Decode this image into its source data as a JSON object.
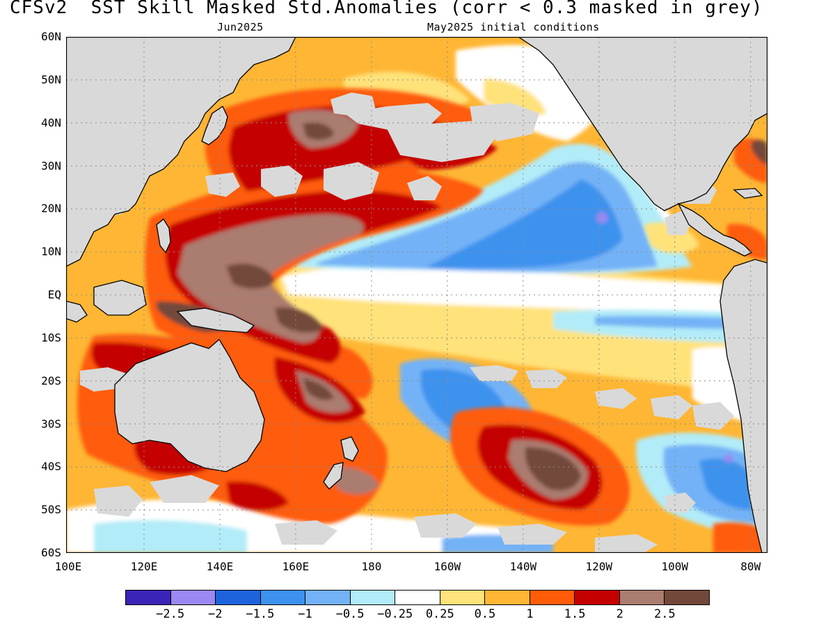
{
  "title": "CFSv2  SST Skill Masked Std.Anomalies (corr < 0.3 masked in grey)",
  "subtitle_left": "Jun2025",
  "subtitle_right": "May2025 initial conditions",
  "lat_labels": [
    "60N",
    "50N",
    "40N",
    "30N",
    "20N",
    "10N",
    "EQ",
    "10S",
    "20S",
    "30S",
    "40S",
    "50S",
    "60S"
  ],
  "lon_labels": [
    "100E",
    "120E",
    "140E",
    "160E",
    "180",
    "160W",
    "140W",
    "120W",
    "100W",
    "80W"
  ],
  "colorbar": {
    "colors": [
      "#3a24b8",
      "#9c88f2",
      "#1d63dc",
      "#3c92ee",
      "#73b2f6",
      "#b2ecf8",
      "#ffffff",
      "#ffe27a",
      "#ffb634",
      "#ff5c0a",
      "#c50000",
      "#ab7c70",
      "#72483a"
    ],
    "labels": [
      "-2.5",
      "-2",
      "-1.5",
      "-1",
      "-0.5",
      "-0.25",
      "0.25",
      "0.5",
      "1",
      "1.5",
      "2",
      "2.5"
    ]
  },
  "map_colors": {
    "land": "#d9d9d9",
    "ocean_base": "#ffb634",
    "coastline": "#000000",
    "grid": "#8c8c8c"
  }
}
